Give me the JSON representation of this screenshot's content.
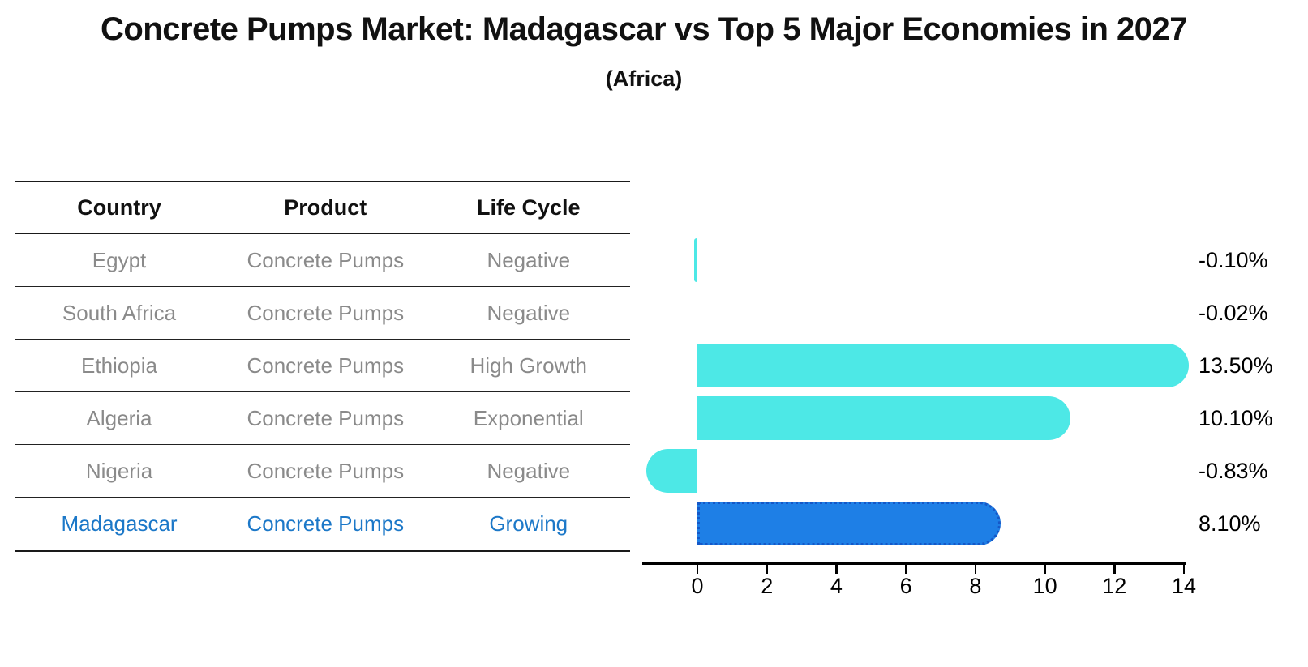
{
  "chart_data": {
    "type": "bar",
    "orientation": "horizontal",
    "title": "Concrete Pumps Market: Madagascar vs Top 5 Major Economies in 2027",
    "subtitle": "(Africa)",
    "categories": [
      "Egypt",
      "South Africa",
      "Ethiopia",
      "Algeria",
      "Nigeria",
      "Madagascar"
    ],
    "values": [
      -0.1,
      -0.02,
      13.5,
      10.1,
      -0.83,
      8.1
    ],
    "value_labels": [
      "-0.10%",
      "-0.02%",
      "13.50%",
      "10.10%",
      "-0.83%",
      "8.10%"
    ],
    "highlight_category": "Madagascar",
    "xlabel": "",
    "ylabel": "",
    "x_ticks": [
      0,
      2,
      4,
      6,
      8,
      10,
      12,
      14
    ],
    "xlim": [
      -1.6,
      14.1
    ],
    "grid": false,
    "legend": false
  },
  "table": {
    "headers": [
      "Country",
      "Product",
      "Life Cycle"
    ],
    "rows": [
      {
        "country": "Egypt",
        "product": "Concrete Pumps",
        "life_cycle": "Negative",
        "highlight": false
      },
      {
        "country": "South Africa",
        "product": "Concrete Pumps",
        "life_cycle": "Negative",
        "highlight": false
      },
      {
        "country": "Ethiopia",
        "product": "Concrete Pumps",
        "life_cycle": "High Growth",
        "highlight": false
      },
      {
        "country": "Algeria",
        "product": "Concrete Pumps",
        "life_cycle": "Exponential",
        "highlight": false
      },
      {
        "country": "Nigeria",
        "product": "Concrete Pumps",
        "life_cycle": "Negative",
        "highlight": false
      },
      {
        "country": "Madagascar",
        "product": "Concrete Pumps",
        "life_cycle": "Growing",
        "highlight": true
      }
    ]
  },
  "colors": {
    "bar": "#4DE8E6",
    "highlight_bar": "#1E7FE6",
    "highlight_bar_border": "#1558C8",
    "highlight_text": "#1C78C8",
    "row_text": "#8A8A8A",
    "label_text": "#000000"
  }
}
